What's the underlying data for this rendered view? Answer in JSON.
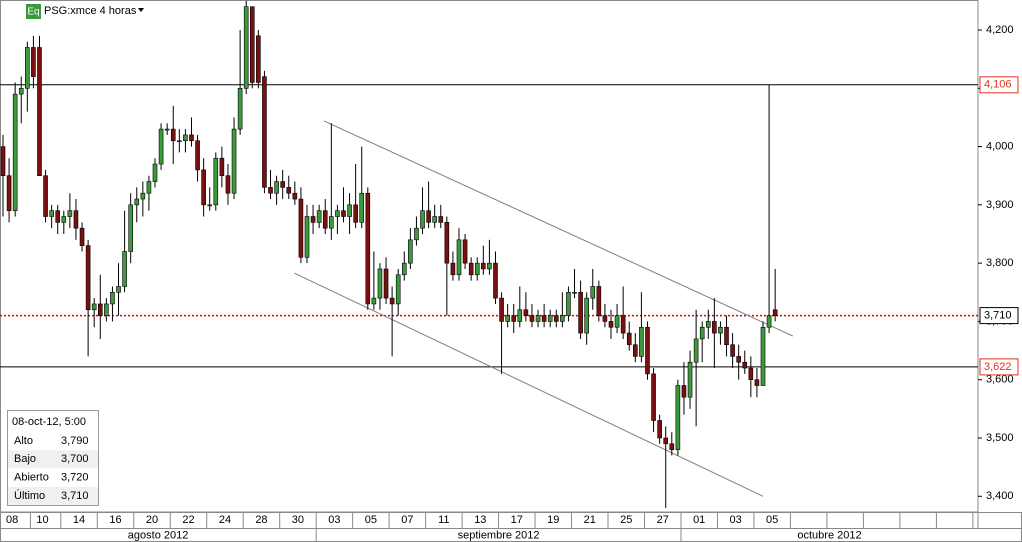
{
  "chart_data": {
    "type": "candlestick",
    "badge": "Eq",
    "title": "PSG:xmce 4 horas",
    "categories": [
      null,
      null,
      "08",
      null,
      null,
      null,
      null,
      "10",
      null,
      null,
      null,
      null,
      null,
      "14",
      null,
      null,
      null,
      null,
      null,
      "16",
      null,
      null,
      null,
      null,
      null,
      "20",
      null,
      null,
      null,
      null,
      null,
      "22",
      null,
      null,
      null,
      null,
      null,
      "24",
      null,
      null,
      null,
      null,
      null,
      "28",
      null,
      null,
      null,
      null,
      null,
      "30",
      null,
      null,
      null,
      null,
      null,
      "03",
      null,
      null,
      null,
      null,
      null,
      "05",
      null,
      null,
      null,
      null,
      null,
      "07",
      null,
      null,
      null,
      null,
      null,
      "11",
      null,
      null,
      null,
      null,
      null,
      "13",
      null,
      null,
      null,
      null,
      null,
      "17",
      null,
      null,
      null,
      null,
      null,
      "19",
      null,
      null,
      null,
      null,
      null,
      "21",
      null,
      null,
      null,
      null,
      null,
      "25",
      null,
      null,
      null,
      null,
      null,
      "27",
      null,
      null,
      null,
      null,
      null,
      "01",
      null,
      null,
      null,
      null,
      null,
      "03",
      null,
      null,
      null,
      null,
      null,
      "05"
    ],
    "months": [
      "agosto 2012",
      "septiembre 2012",
      "octubre 2012"
    ],
    "series": [
      {
        "name": "Alto",
        "values": [
          4.02,
          3.98,
          4.11,
          4.12,
          4.18,
          4.19,
          4.19,
          3.96,
          3.9,
          3.9,
          3.89,
          3.92,
          3.91,
          3.87,
          3.84,
          3.74,
          3.78,
          3.74,
          3.76,
          3.8,
          3.89,
          3.92,
          3.93,
          3.94,
          3.95,
          3.98,
          4.04,
          4.04,
          4.07,
          4.03,
          4.03,
          4.05,
          4.02,
          3.98,
          3.93,
          3.99,
          4.0,
          3.97,
          4.05,
          4.2,
          4.25,
          4.24,
          4.2,
          4.13,
          3.96,
          3.95,
          3.96,
          3.95,
          3.94,
          3.93,
          3.9,
          3.9,
          3.9,
          3.91,
          4.04,
          3.9,
          3.93,
          3.92,
          3.97,
          4.0,
          3.93,
          3.82,
          3.8,
          3.81,
          3.76,
          3.79,
          3.82,
          3.86,
          3.88,
          3.93,
          3.94,
          3.9,
          3.9,
          3.88,
          3.82,
          3.86,
          3.85,
          3.81,
          3.81,
          3.83,
          3.84,
          3.82,
          3.75,
          3.73,
          3.73,
          3.76,
          3.75,
          3.73,
          3.72,
          3.73,
          3.72,
          3.72,
          3.75,
          3.76,
          3.79,
          3.77,
          3.75,
          3.79,
          3.77,
          3.73,
          3.72,
          3.73,
          3.76,
          3.7,
          3.68,
          3.75,
          3.7,
          3.62,
          3.54,
          3.52,
          3.51,
          3.6,
          3.63,
          3.65,
          3.72,
          3.7,
          3.72,
          3.74,
          3.7,
          3.71,
          3.68,
          3.66,
          3.65,
          3.64,
          3.62,
          3.7,
          4.106,
          3.79
        ]
      },
      {
        "name": "Bajo",
        "values": [
          3.88,
          3.87,
          3.88,
          4.04,
          4.06,
          4.1,
          3.95,
          3.87,
          3.86,
          3.85,
          3.85,
          3.86,
          3.84,
          3.82,
          3.64,
          3.69,
          3.67,
          3.7,
          3.7,
          3.71,
          3.75,
          3.8,
          3.87,
          3.88,
          3.89,
          3.93,
          3.96,
          4.02,
          3.97,
          3.99,
          3.99,
          4.0,
          3.94,
          3.88,
          3.89,
          3.89,
          3.93,
          3.9,
          3.91,
          4.02,
          4.09,
          4.1,
          4.1,
          3.92,
          3.91,
          3.9,
          3.91,
          3.91,
          3.9,
          3.8,
          3.8,
          3.85,
          3.86,
          3.85,
          3.84,
          3.85,
          3.87,
          3.85,
          3.86,
          3.86,
          3.72,
          3.72,
          3.72,
          3.73,
          3.64,
          3.71,
          3.77,
          3.79,
          3.83,
          3.85,
          3.86,
          3.86,
          3.86,
          3.71,
          3.77,
          3.77,
          3.79,
          3.77,
          3.77,
          3.78,
          3.78,
          3.73,
          3.61,
          3.69,
          3.68,
          3.69,
          3.7,
          3.69,
          3.69,
          3.69,
          3.69,
          3.69,
          3.69,
          3.7,
          3.74,
          3.67,
          3.66,
          3.72,
          3.7,
          3.69,
          3.67,
          3.68,
          3.67,
          3.65,
          3.63,
          3.63,
          3.6,
          3.51,
          3.49,
          3.38,
          3.47,
          3.47,
          3.54,
          3.55,
          3.52,
          3.63,
          3.67,
          3.62,
          3.66,
          3.64,
          3.62,
          3.6,
          3.61,
          3.57,
          3.57,
          3.59,
          3.68,
          3.7
        ]
      },
      {
        "name": "Abierto",
        "values": [
          4.0,
          3.95,
          3.89,
          4.09,
          4.1,
          4.17,
          4.17,
          3.95,
          3.88,
          3.89,
          3.87,
          3.88,
          3.89,
          3.86,
          3.83,
          3.72,
          3.73,
          3.71,
          3.73,
          3.75,
          3.76,
          3.82,
          3.9,
          3.91,
          3.92,
          3.94,
          3.97,
          4.03,
          4.03,
          4.01,
          4.01,
          4.02,
          4.01,
          3.96,
          3.9,
          3.9,
          3.98,
          3.95,
          3.92,
          4.03,
          4.1,
          4.24,
          4.19,
          4.12,
          3.93,
          3.92,
          3.94,
          3.93,
          3.92,
          3.91,
          3.81,
          3.88,
          3.87,
          3.89,
          3.86,
          3.88,
          3.89,
          3.88,
          3.9,
          3.87,
          3.92,
          3.73,
          3.74,
          3.79,
          3.74,
          3.73,
          3.78,
          3.8,
          3.84,
          3.86,
          3.89,
          3.87,
          3.88,
          3.87,
          3.8,
          3.78,
          3.84,
          3.8,
          3.78,
          3.8,
          3.79,
          3.8,
          3.74,
          3.7,
          3.71,
          3.7,
          3.72,
          3.71,
          3.7,
          3.71,
          3.7,
          3.71,
          3.7,
          3.71,
          3.75,
          3.75,
          3.68,
          3.74,
          3.76,
          3.71,
          3.7,
          3.69,
          3.71,
          3.68,
          3.66,
          3.64,
          3.69,
          3.61,
          3.53,
          3.5,
          3.49,
          3.48,
          3.59,
          3.57,
          3.63,
          3.67,
          3.69,
          3.7,
          3.68,
          3.69,
          3.66,
          3.64,
          3.63,
          3.62,
          3.6,
          3.59,
          3.69,
          3.72
        ]
      },
      {
        "name": "Último",
        "values": [
          3.95,
          3.89,
          4.09,
          4.1,
          4.17,
          4.12,
          3.95,
          3.88,
          3.89,
          3.87,
          3.88,
          3.89,
          3.86,
          3.83,
          3.72,
          3.73,
          3.71,
          3.73,
          3.75,
          3.76,
          3.82,
          3.9,
          3.91,
          3.92,
          3.94,
          3.97,
          4.03,
          4.03,
          4.01,
          4.01,
          4.02,
          4.01,
          3.96,
          3.9,
          3.9,
          3.98,
          3.95,
          3.92,
          4.03,
          4.1,
          4.24,
          4.11,
          4.11,
          3.93,
          3.92,
          3.94,
          3.93,
          3.92,
          3.91,
          3.81,
          3.88,
          3.87,
          3.89,
          3.86,
          3.88,
          3.89,
          3.88,
          3.9,
          3.87,
          3.92,
          3.73,
          3.74,
          3.79,
          3.74,
          3.73,
          3.78,
          3.8,
          3.84,
          3.86,
          3.89,
          3.87,
          3.88,
          3.87,
          3.8,
          3.78,
          3.84,
          3.8,
          3.78,
          3.8,
          3.79,
          3.8,
          3.74,
          3.7,
          3.71,
          3.7,
          3.72,
          3.71,
          3.7,
          3.71,
          3.7,
          3.71,
          3.7,
          3.71,
          3.75,
          3.75,
          3.68,
          3.74,
          3.76,
          3.71,
          3.7,
          3.69,
          3.71,
          3.68,
          3.66,
          3.64,
          3.69,
          3.61,
          3.53,
          3.5,
          3.49,
          3.48,
          3.59,
          3.57,
          3.63,
          3.67,
          3.69,
          3.7,
          3.68,
          3.69,
          3.66,
          3.64,
          3.63,
          3.62,
          3.6,
          3.59,
          3.69,
          3.71,
          3.71
        ]
      }
    ],
    "up_color": "#3c9a3c",
    "down_color": "#7a1010",
    "ylim": [
      3.373,
      4.2515
    ],
    "yticks": [
      {
        "value": 4.2,
        "label": "4,200"
      },
      {
        "value": 4.1,
        "label": "4,100"
      },
      {
        "value": 4.0,
        "label": "4,000"
      },
      {
        "value": 3.9,
        "label": "3,900"
      },
      {
        "value": 3.8,
        "label": "3,800"
      },
      {
        "value": 3.7,
        "label": "3,700"
      },
      {
        "value": 3.6,
        "label": "3,600"
      },
      {
        "value": 3.5,
        "label": "3,500"
      },
      {
        "value": 3.4,
        "label": "3,400"
      }
    ],
    "hlines": [
      {
        "value": 4.106,
        "label": "4,106",
        "color": "#000000",
        "label_color": "#e03020",
        "dashed": false
      },
      {
        "value": 3.71,
        "label": "3,710",
        "color": "#e00000",
        "label_color": "#000000",
        "dashed": true
      },
      {
        "value": 3.622,
        "label": "3,622",
        "color": "#000000",
        "label_color": "#e03020",
        "dashed": false
      }
    ],
    "trendlines": [
      {
        "x": [
          52.8,
          129.9
        ],
        "y": [
          4.044,
          3.675
        ],
        "color": "#808080"
      },
      {
        "x": [
          47.9,
          125
        ],
        "y": [
          3.783,
          3.4
        ],
        "color": "#808080"
      }
    ],
    "info": {
      "date": "08-oct-12, 5:00",
      "value_labels": [
        "3,790",
        "3,700",
        "3,720",
        "3,710"
      ]
    }
  }
}
